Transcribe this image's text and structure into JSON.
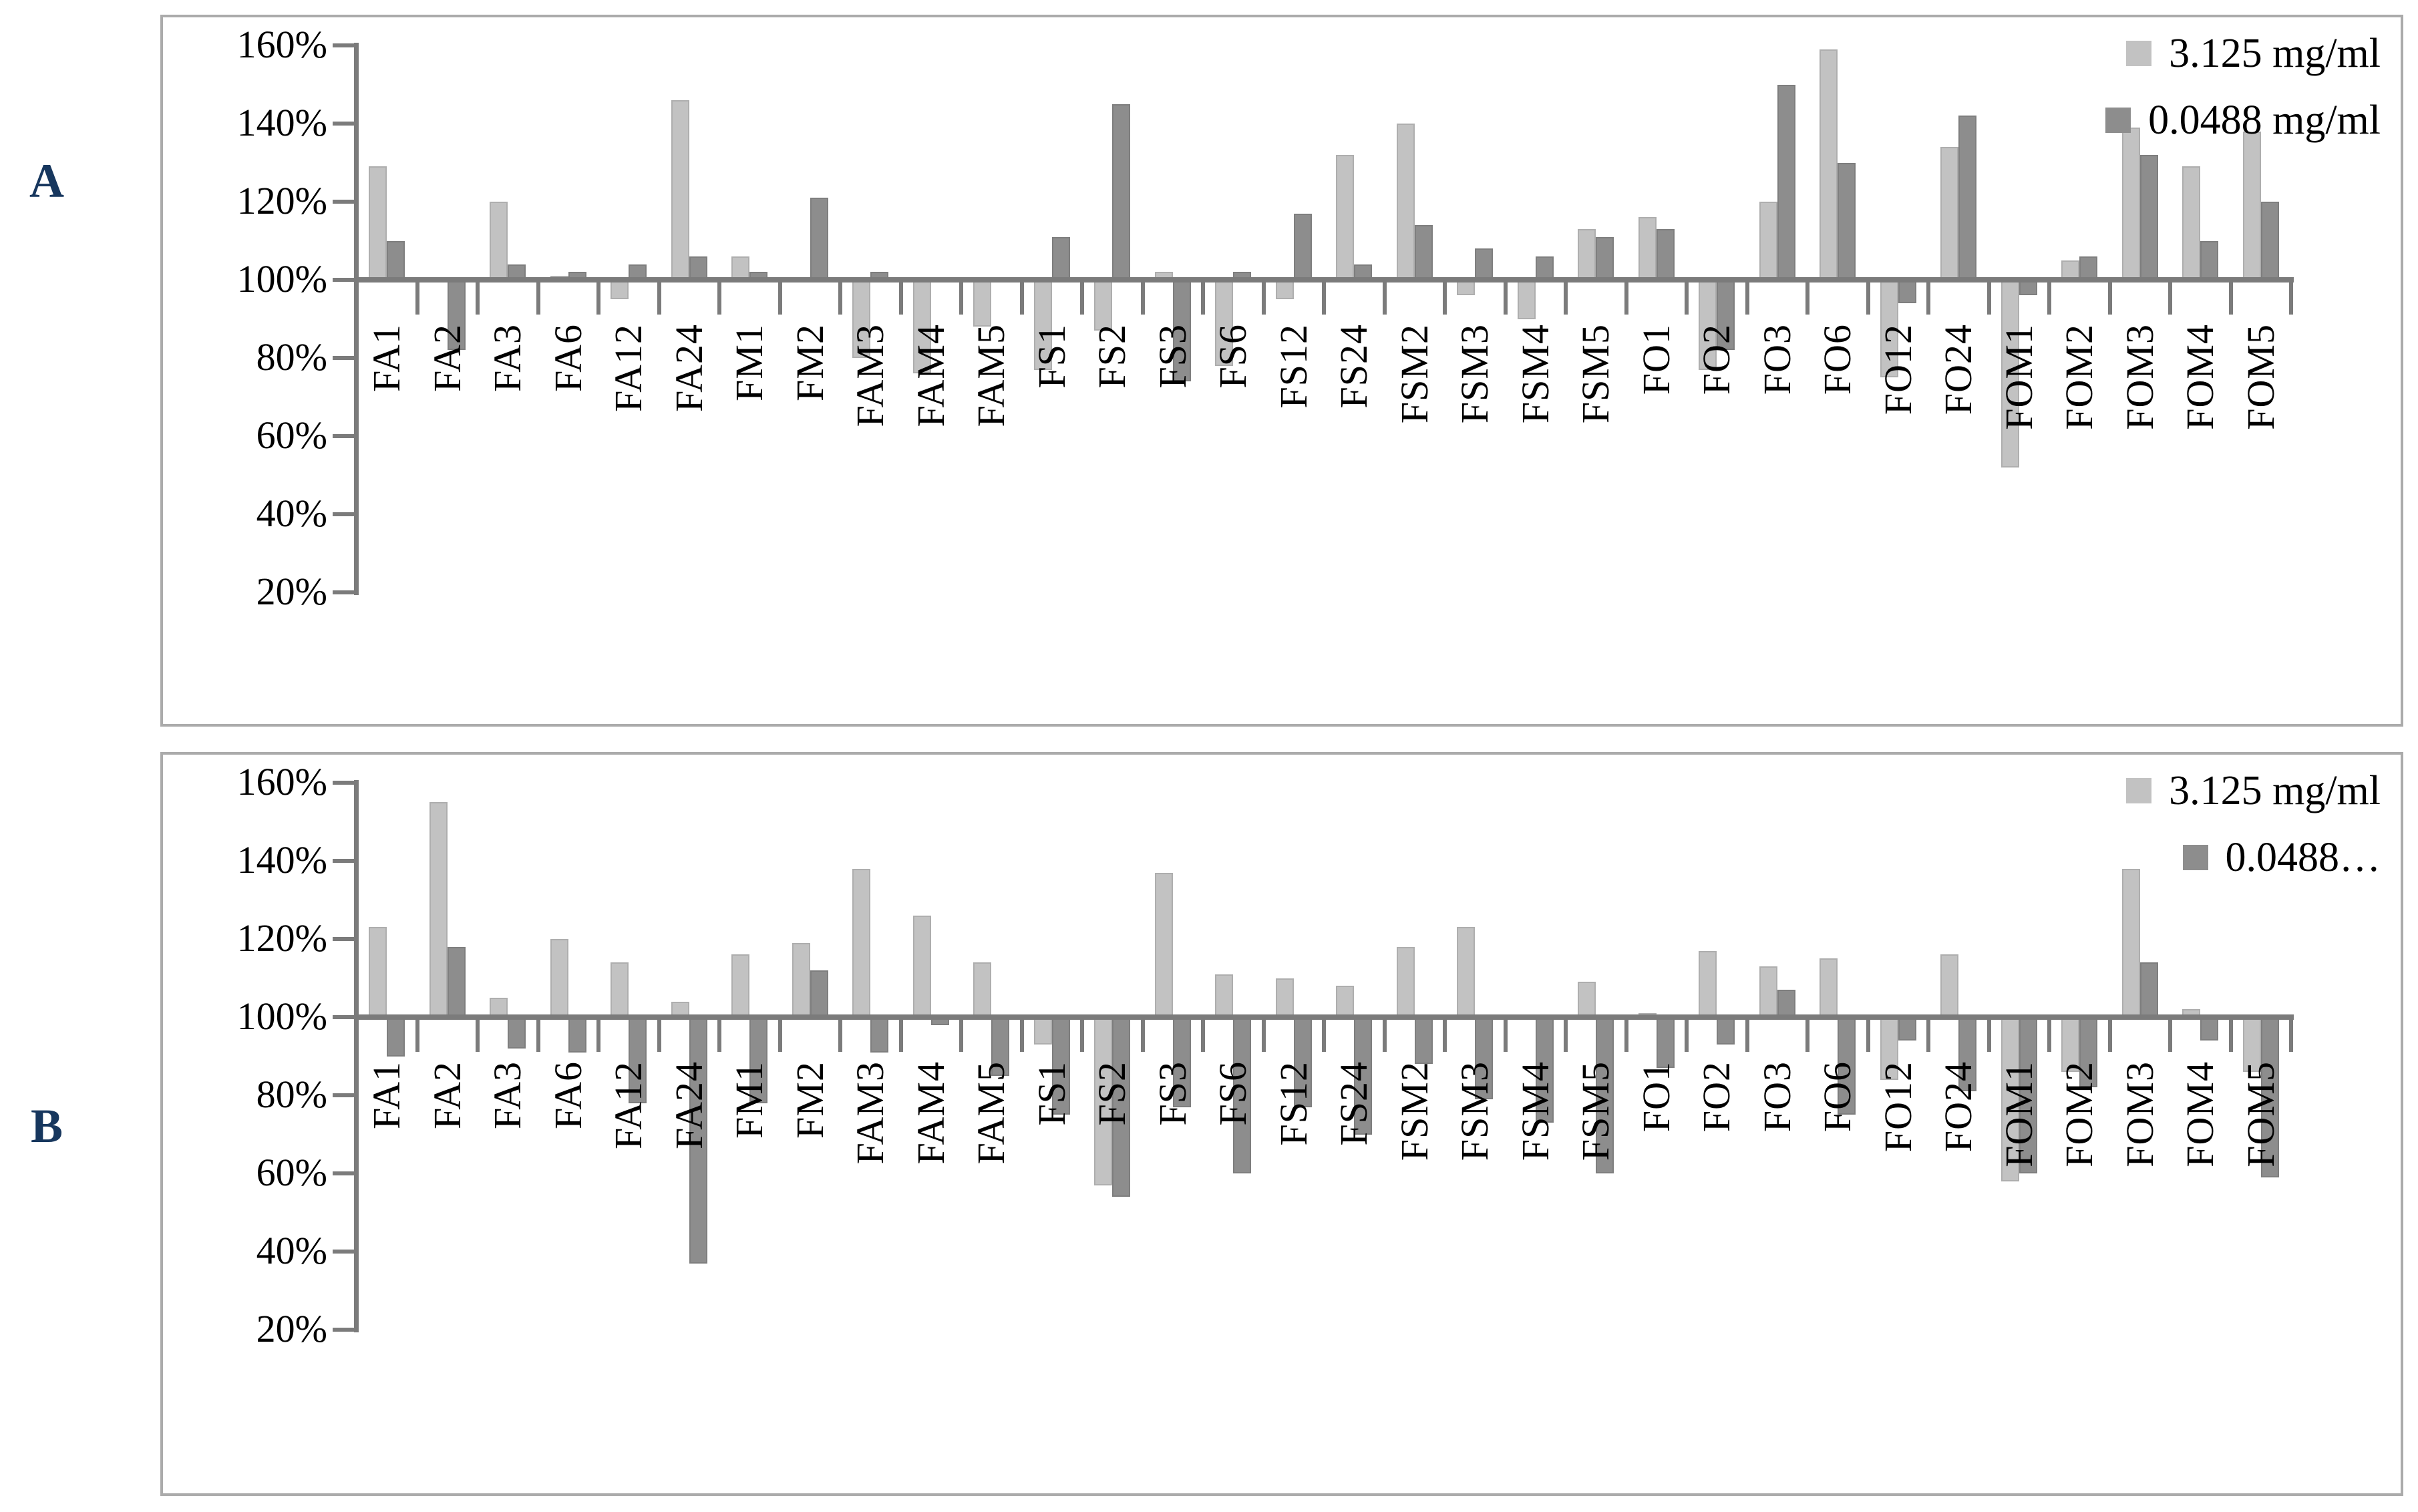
{
  "chart_data": [
    {
      "type": "bar",
      "panel_label": "A",
      "legend_labels": [
        "3.125 mg/ml",
        "0.0488 mg/ml"
      ],
      "legend_position": "top-right",
      "grid": false,
      "y_axis": {
        "tick_labels": [
          "160%",
          "140%",
          "120%",
          "100%",
          "80%",
          "60%",
          "40%",
          "20%"
        ],
        "min": 20,
        "max": 160,
        "baseline": 100,
        "unit": "%"
      },
      "categories": [
        "FA1",
        "FA2",
        "FA3",
        "FA6",
        "FA12",
        "FA24",
        "FM1",
        "FM2",
        "FAM3",
        "FAM4",
        "FAM5",
        "FS1",
        "FS2",
        "FS3",
        "FS6",
        "FS12",
        "FS24",
        "FSM2",
        "FSM3",
        "FSM4",
        "FSM5",
        "FO1",
        "FO2",
        "FO3",
        "FO6",
        "FO12",
        "FO24",
        "FOM1",
        "FOM2",
        "FOM3",
        "FOM4",
        "FOM5"
      ],
      "series": [
        {
          "name": "3.125 mg/ml",
          "color": "#c2c2c2",
          "values": [
            129,
            100,
            120,
            101,
            95,
            146,
            106,
            100,
            80,
            76,
            88,
            77,
            87,
            102,
            78,
            95,
            132,
            140,
            96,
            90,
            113,
            116,
            77,
            120,
            159,
            75,
            134,
            52,
            105,
            139,
            129,
            138
          ]
        },
        {
          "name": "0.0488 mg/ml",
          "color": "#8d8d8d",
          "values": [
            110,
            82,
            104,
            102,
            104,
            106,
            102,
            121,
            102,
            100,
            100,
            111,
            145,
            74,
            102,
            117,
            104,
            114,
            108,
            106,
            111,
            113,
            82,
            150,
            130,
            94,
            142,
            96,
            106,
            132,
            110,
            120
          ]
        }
      ]
    },
    {
      "type": "bar",
      "panel_label": "B",
      "legend_labels": [
        "3.125 mg/ml",
        "0.0488…"
      ],
      "legend_position": "top-right",
      "grid": false,
      "y_axis": {
        "tick_labels": [
          "160%",
          "140%",
          "120%",
          "100%",
          "80%",
          "60%",
          "40%",
          "20%"
        ],
        "min": 20,
        "max": 160,
        "baseline": 100,
        "unit": "%"
      },
      "categories": [
        "FA1",
        "FA2",
        "FA3",
        "FA6",
        "FA12",
        "FA24",
        "FM1",
        "FM2",
        "FAM3",
        "FAM4",
        "FAM5",
        "FS1",
        "FS2",
        "FS3",
        "FS6",
        "FS12",
        "FS24",
        "FSM2",
        "FSM3",
        "FSM4",
        "FSM5",
        "FO1",
        "FO2",
        "FO3",
        "FO6",
        "FO12",
        "FO24",
        "FOM1",
        "FOM2",
        "FOM3",
        "FOM4",
        "FOM5"
      ],
      "series": [
        {
          "name": "3.125 mg/ml",
          "color": "#c2c2c2",
          "values": [
            123,
            155,
            105,
            120,
            114,
            104,
            116,
            119,
            138,
            126,
            114,
            93,
            57,
            137,
            111,
            110,
            108,
            118,
            123,
            100,
            109,
            101,
            117,
            113,
            115,
            84,
            116,
            58,
            86,
            138,
            102,
            86
          ]
        },
        {
          "name": "0.0488 mg/ml",
          "color": "#8d8d8d",
          "values": [
            90,
            118,
            92,
            91,
            78,
            37,
            78,
            112,
            91,
            98,
            85,
            75,
            54,
            77,
            60,
            77,
            70,
            88,
            79,
            73,
            60,
            87,
            93,
            107,
            75,
            94,
            81,
            60,
            82,
            114,
            94,
            59
          ]
        }
      ]
    }
  ],
  "colors": {
    "series_light": "#c2c2c2",
    "series_dark": "#8d8d8d",
    "axis": "#7b7b7b",
    "chart_border": "#ababab",
    "panel_label": "#17375e",
    "background": "#ffffff"
  }
}
